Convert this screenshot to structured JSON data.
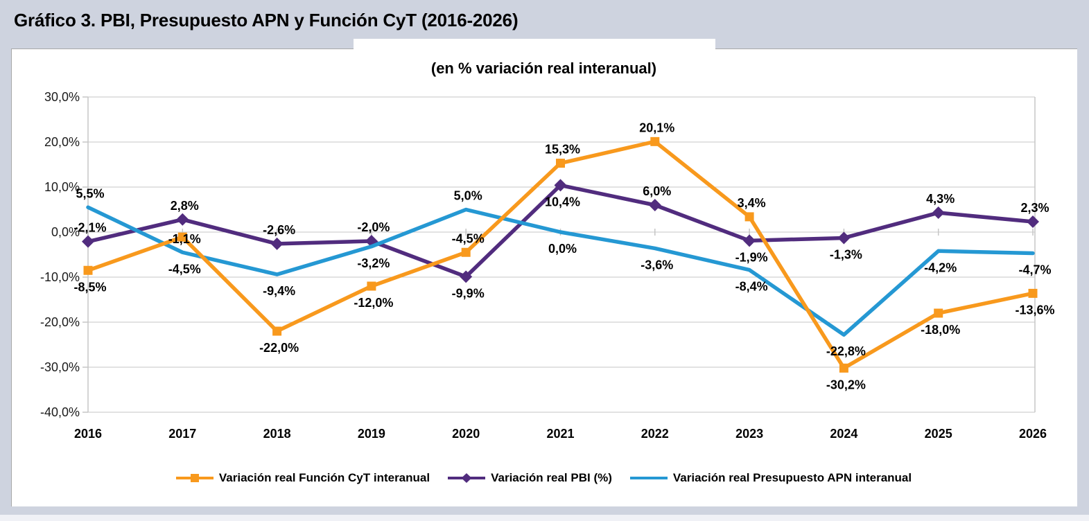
{
  "page": {
    "title": "Gráfico 3. PBI, Presupuesto APN y Función CyT (2016-2026)"
  },
  "chart_data": {
    "type": "line",
    "title": "Gráfico 3. PBI, Presupuesto APN y Función CyT (2016-2026)",
    "subtitle": "(en % variación real interanual)",
    "categories": [
      "2016",
      "2017",
      "2018",
      "2019",
      "2020",
      "2021",
      "2022",
      "2023",
      "2024",
      "2025",
      "2026"
    ],
    "series": [
      {
        "id": "funcion-cyt",
        "name": "Variación real Función CyT interanual",
        "color": "#F8991D",
        "marker": "square",
        "values": [
          -8.5,
          -1.1,
          -22.0,
          -12.0,
          -4.5,
          15.3,
          20.1,
          3.4,
          -30.2,
          -18.0,
          -13.6
        ],
        "label_positions": [
          "below",
          "on",
          "below",
          "below",
          "above",
          "above",
          "above",
          "above",
          "below",
          "below",
          "below"
        ]
      },
      {
        "id": "pbi",
        "name": "Variación real PBI (%)",
        "color": "#512C7E",
        "marker": "diamond",
        "values": [
          -2.1,
          2.8,
          -2.6,
          -2.0,
          -9.9,
          10.4,
          6.0,
          -1.9,
          -1.3,
          4.3,
          2.3
        ],
        "label_positions": [
          "above",
          "above",
          "above",
          "above",
          "below",
          "below",
          "above",
          "below",
          "below",
          "above",
          "above"
        ]
      },
      {
        "id": "presupuesto-apn",
        "name": "Variación real Presupuesto APN interanual",
        "color": "#2598D3",
        "marker": "none",
        "values": [
          5.5,
          -4.5,
          -9.4,
          -3.2,
          5.0,
          0.0,
          -3.6,
          -8.4,
          -22.8,
          -4.2,
          -4.7
        ],
        "label_positions": [
          "above",
          "below",
          "below",
          "below",
          "above",
          "below",
          "below",
          "below",
          "below",
          "below",
          "below"
        ]
      }
    ],
    "ylim": [
      -40,
      30
    ],
    "ytick_step": 10,
    "ytick_labels": [
      "30,0%",
      "20,0%",
      "10,0%",
      "0,0%",
      "-10,0%",
      "-20,0%",
      "-30,0%",
      "-40,0%"
    ],
    "grid": true,
    "legend_position": "bottom",
    "decimal_separator": ",",
    "value_suffix": "%",
    "z_order": [
      1,
      2,
      0
    ],
    "colors": {
      "grid": "#C6C6C6",
      "axis_text": "#1A1A1A",
      "label_text": "#000000",
      "page_bg": "#CED3DF",
      "chart_bg": "#FFFFFF"
    }
  }
}
